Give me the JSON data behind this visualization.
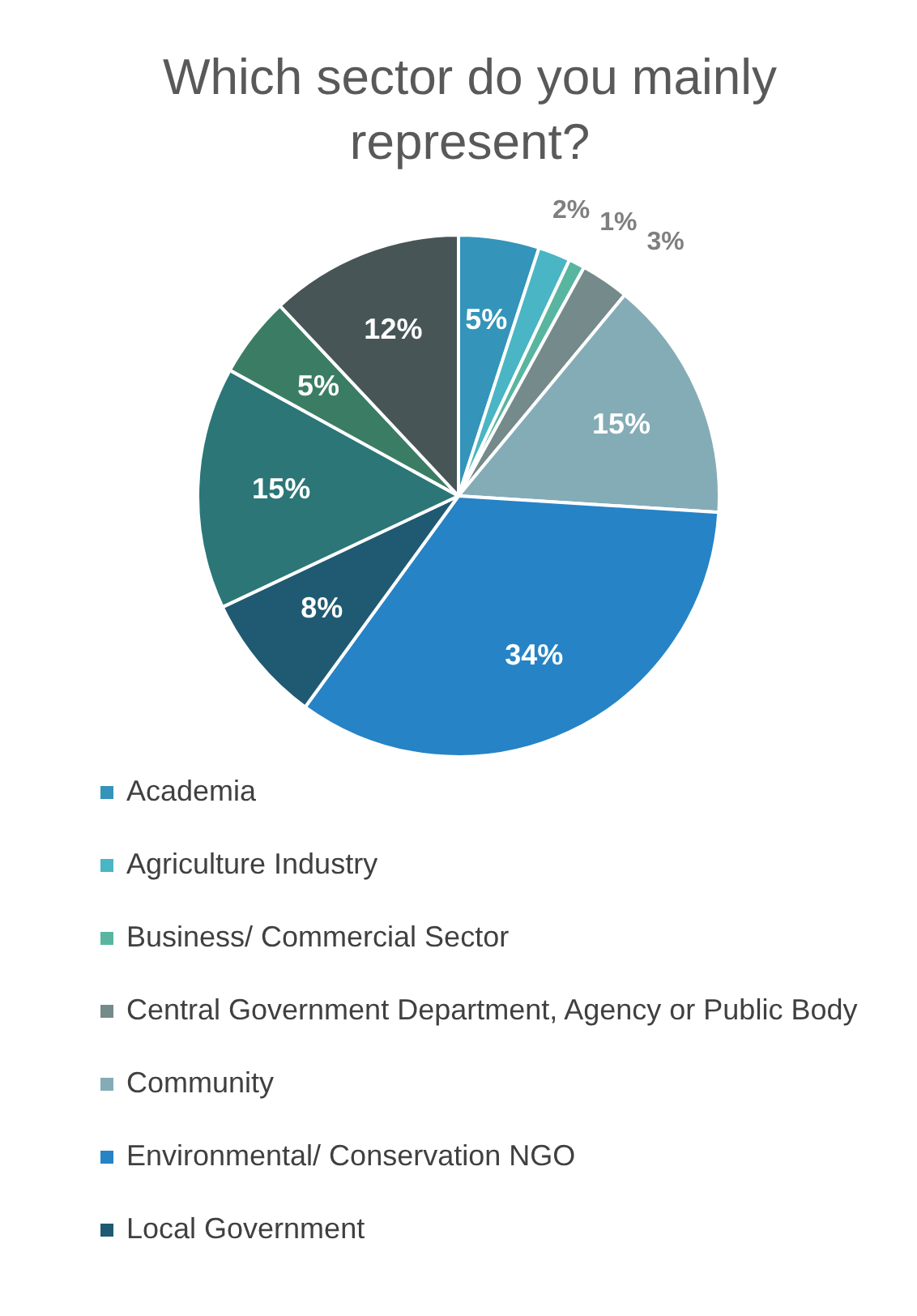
{
  "chart_data": {
    "type": "pie",
    "title": "Which sector do you mainly represent?",
    "categories": [
      "Academia",
      "Agriculture Industry",
      "Business/ Commercial Sector",
      "Central Government Department, Agency or Public Body",
      "Community",
      "Environmental/ Conservation NGO",
      "Local Government",
      null,
      null,
      null
    ],
    "values": [
      5,
      2,
      1,
      3,
      15,
      34,
      8,
      15,
      5,
      12
    ],
    "colors": [
      "#3494ba",
      "#4ab5c4",
      "#58b6a0",
      "#758a8a",
      "#84acb6",
      "#2683c6",
      "#1f5a72",
      "#2c7677",
      "#3b7d64",
      "#475556"
    ],
    "value_labels": [
      "5%",
      "2%",
      "1%",
      "3%",
      "15%",
      "34%",
      "8%",
      "15%",
      "5%",
      "12%"
    ],
    "legend": "bottom"
  }
}
